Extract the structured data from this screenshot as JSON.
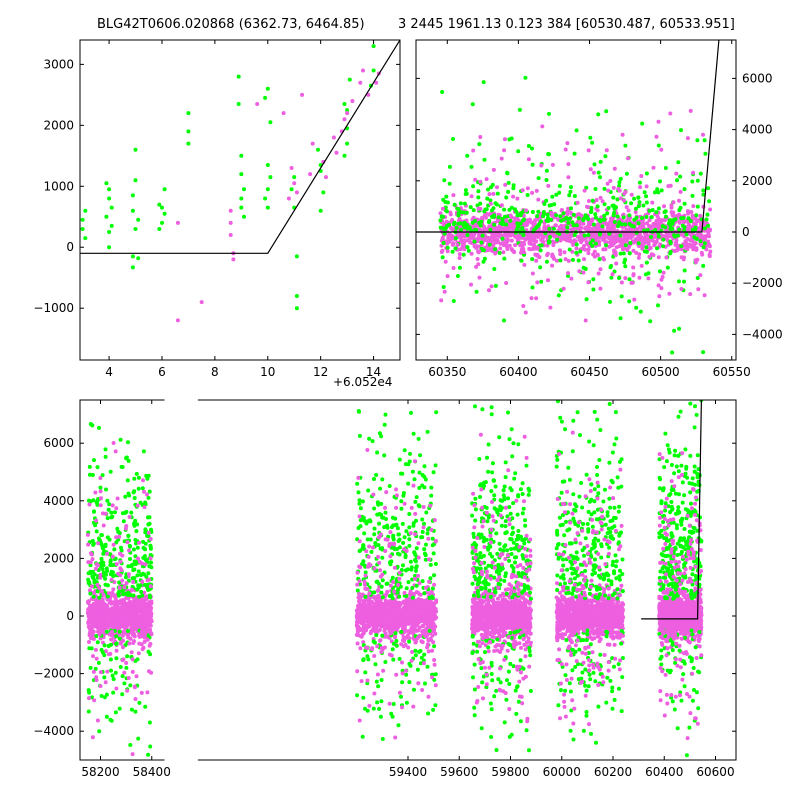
{
  "figure": {
    "title_left": "BLG42T0606.020868 (6362.73, 6464.85)",
    "title_right": "3 2445 1961.13 0.123 384 [60530.487, 60533.951]",
    "offset_label": "+6.052e4",
    "colors": {
      "series_a": "#00ff00",
      "series_b": "#ee5fe0",
      "model": "#000000"
    }
  },
  "chart_data": [
    {
      "type": "scatter",
      "title": "",
      "xlim": [
        2.9,
        15.0
      ],
      "ylim": [
        -1850,
        3400
      ],
      "xticks": [
        4,
        6,
        8,
        10,
        12,
        14
      ],
      "yticks": [
        -1000,
        0,
        1000,
        2000,
        3000
      ],
      "x_offset": 60520,
      "series": [
        {
          "color": "#00ff00",
          "points": [
            [
              3.0,
              450
            ],
            [
              3.1,
              600
            ],
            [
              3.0,
              300
            ],
            [
              3.1,
              150
            ],
            [
              3.9,
              1050
            ],
            [
              4.0,
              950
            ],
            [
              4.0,
              800
            ],
            [
              4.1,
              650
            ],
            [
              3.9,
              500
            ],
            [
              4.1,
              350
            ],
            [
              4.0,
              250
            ],
            [
              4.0,
              0
            ],
            [
              4.9,
              850
            ],
            [
              5.0,
              1100
            ],
            [
              4.9,
              600
            ],
            [
              5.1,
              450
            ],
            [
              5.0,
              300
            ],
            [
              4.9,
              -150
            ],
            [
              4.9,
              -330
            ],
            [
              5.1,
              -180
            ],
            [
              5.0,
              1600
            ],
            [
              5.9,
              700
            ],
            [
              6.0,
              650
            ],
            [
              6.1,
              550
            ],
            [
              6.0,
              400
            ],
            [
              5.9,
              300
            ],
            [
              6.1,
              950
            ],
            [
              7.0,
              2200
            ],
            [
              7.0,
              1900
            ],
            [
              7.0,
              1700
            ],
            [
              8.9,
              2800
            ],
            [
              9.0,
              1500
            ],
            [
              9.0,
              1200
            ],
            [
              9.1,
              950
            ],
            [
              9.0,
              800
            ],
            [
              8.9,
              2350
            ],
            [
              9.0,
              650
            ],
            [
              9.1,
              500
            ],
            [
              9.9,
              2450
            ],
            [
              10.0,
              2600
            ],
            [
              10.0,
              1350
            ],
            [
              10.1,
              1150
            ],
            [
              10.0,
              950
            ],
            [
              9.9,
              800
            ],
            [
              10.0,
              650
            ],
            [
              10.1,
              2050
            ],
            [
              10.9,
              950
            ],
            [
              11.0,
              1150
            ],
            [
              11.0,
              650
            ],
            [
              11.1,
              -150
            ],
            [
              11.1,
              -1000
            ],
            [
              11.1,
              -800
            ],
            [
              11.9,
              1600
            ],
            [
              12.0,
              1350
            ],
            [
              12.0,
              1250
            ],
            [
              12.1,
              900
            ],
            [
              12.0,
              600
            ],
            [
              12.9,
              2350
            ],
            [
              13.0,
              2250
            ],
            [
              13.0,
              1950
            ],
            [
              13.0,
              1700
            ],
            [
              12.9,
              1500
            ],
            [
              13.1,
              2750
            ],
            [
              14.0,
              3300
            ],
            [
              14.0,
              2900
            ],
            [
              13.9,
              2650
            ]
          ]
        },
        {
          "color": "#ee5fe0",
          "points": [
            [
              6.6,
              400
            ],
            [
              6.6,
              -1200
            ],
            [
              7.5,
              -900
            ],
            [
              8.6,
              400
            ],
            [
              8.6,
              200
            ],
            [
              8.7,
              -200
            ],
            [
              8.7,
              -100
            ],
            [
              8.6,
              600
            ],
            [
              9.6,
              2350
            ],
            [
              10.6,
              2200
            ],
            [
              10.9,
              1300
            ],
            [
              11.0,
              1050
            ],
            [
              10.8,
              800
            ],
            [
              11.1,
              900
            ],
            [
              11.3,
              2500
            ],
            [
              11.7,
              1700
            ],
            [
              12.1,
              1400
            ],
            [
              12.2,
              1150
            ],
            [
              12.5,
              1800
            ],
            [
              12.6,
              1550
            ],
            [
              12.8,
              1900
            ],
            [
              13.0,
              2200
            ],
            [
              13.2,
              2400
            ],
            [
              13.5,
              2700
            ],
            [
              13.8,
              2500
            ],
            [
              14.1,
              2700
            ],
            [
              14.2,
              2850
            ],
            [
              13.6,
              2900
            ],
            [
              12.9,
              2100
            ],
            [
              11.6,
              1200
            ]
          ]
        }
      ],
      "model_line": [
        [
          2.9,
          -100
        ],
        [
          10.0,
          -100
        ],
        [
          15.0,
          3400
        ]
      ]
    },
    {
      "type": "scatter",
      "title": "",
      "xlim": [
        60328,
        60553
      ],
      "ylim": [
        -5000,
        7500
      ],
      "xticks": [
        60350,
        60400,
        60450,
        60500,
        60550
      ],
      "yticks": [
        -4000,
        -2000,
        0,
        2000,
        4000,
        6000
      ],
      "y_axis_side": "right",
      "model_line": [
        [
          60328,
          0
        ],
        [
          60529,
          0
        ],
        [
          60541,
          7500
        ]
      ],
      "cluster_xrange": [
        60345,
        60535
      ]
    },
    {
      "type": "scatter",
      "title": "",
      "xlim": [
        58120,
        60680
      ],
      "ylim": [
        -5000,
        7500
      ],
      "xticks": [
        58200,
        58400,
        59400,
        59600,
        59800,
        60000,
        60200,
        60400,
        60600
      ],
      "yticks": [
        -4000,
        -2000,
        0,
        2000,
        4000,
        6000
      ],
      "x_axis_break": [
        58450,
        58580
      ],
      "model_line": [
        [
          60310,
          -100
        ],
        [
          60530,
          -100
        ],
        [
          60545,
          7500
        ]
      ],
      "clusters": [
        {
          "x": [
            58150,
            58400
          ],
          "green_up": 5500,
          "spread": 1000
        },
        {
          "x": [
            59200,
            59510
          ],
          "green_up": 7500,
          "spread": 1000
        },
        {
          "x": [
            59650,
            59880
          ],
          "green_up": 6500,
          "spread": 1000
        },
        {
          "x": [
            59980,
            60240
          ],
          "green_up": 7000,
          "spread": 1000
        },
        {
          "x": [
            60380,
            60545
          ],
          "green_up": 7000,
          "spread": 1000
        }
      ]
    }
  ]
}
